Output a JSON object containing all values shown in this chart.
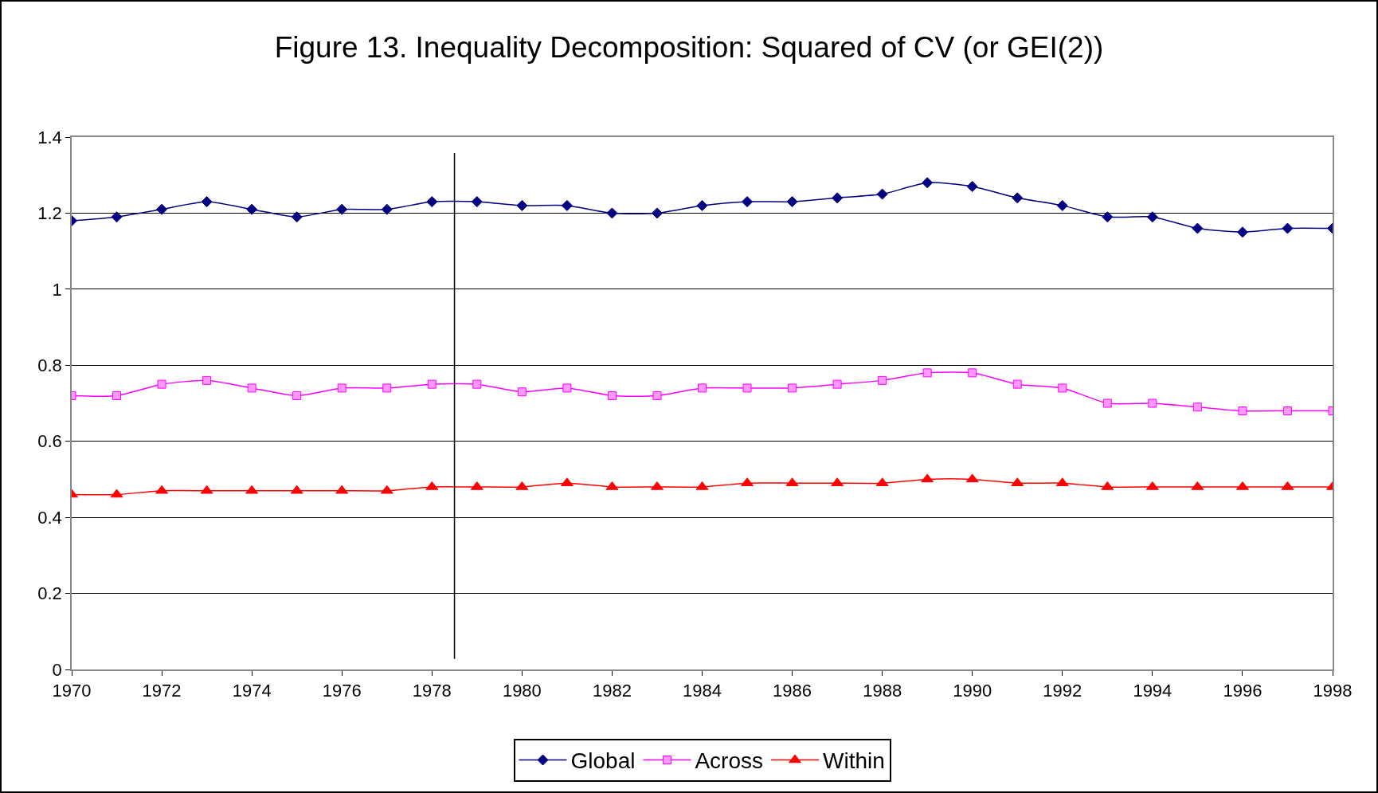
{
  "chart_data": {
    "type": "line",
    "title": "Figure 13. Inequality Decomposition: Squared of CV (or GEI(2))",
    "x": [
      1970,
      1971,
      1972,
      1973,
      1974,
      1975,
      1976,
      1977,
      1978,
      1979,
      1980,
      1981,
      1982,
      1983,
      1984,
      1985,
      1986,
      1987,
      1988,
      1989,
      1990,
      1991,
      1992,
      1993,
      1994,
      1995,
      1996,
      1997,
      1998
    ],
    "series": [
      {
        "name": "Global",
        "color": "#000080",
        "marker": "diamond",
        "values": [
          1.18,
          1.19,
          1.21,
          1.23,
          1.21,
          1.19,
          1.21,
          1.21,
          1.23,
          1.23,
          1.22,
          1.22,
          1.2,
          1.2,
          1.22,
          1.23,
          1.23,
          1.24,
          1.25,
          1.28,
          1.27,
          1.24,
          1.22,
          1.19,
          1.19,
          1.16,
          1.15,
          1.16,
          1.16
        ]
      },
      {
        "name": "Across",
        "color": "#ff00ff",
        "marker": "square",
        "values": [
          0.72,
          0.72,
          0.75,
          0.76,
          0.74,
          0.72,
          0.74,
          0.74,
          0.75,
          0.75,
          0.73,
          0.74,
          0.72,
          0.72,
          0.74,
          0.74,
          0.74,
          0.75,
          0.76,
          0.78,
          0.78,
          0.75,
          0.74,
          0.7,
          0.7,
          0.69,
          0.68,
          0.68,
          0.68
        ]
      },
      {
        "name": "Within",
        "color": "#ff0000",
        "marker": "triangle",
        "values": [
          0.46,
          0.46,
          0.47,
          0.47,
          0.47,
          0.47,
          0.47,
          0.47,
          0.48,
          0.48,
          0.48,
          0.49,
          0.48,
          0.48,
          0.48,
          0.49,
          0.49,
          0.49,
          0.49,
          0.5,
          0.5,
          0.49,
          0.49,
          0.48,
          0.48,
          0.48,
          0.48,
          0.48,
          0.48
        ]
      }
    ],
    "xlim": [
      1970,
      1998
    ],
    "xticks": [
      1970,
      1972,
      1974,
      1976,
      1978,
      1980,
      1982,
      1984,
      1986,
      1988,
      1990,
      1992,
      1994,
      1996,
      1998
    ],
    "ylim": [
      0,
      1.4
    ],
    "yticks": [
      0,
      0.2,
      0.4,
      0.6,
      0.8,
      1,
      1.2,
      1.4
    ],
    "ref_lines": [
      {
        "axis": "x",
        "value": 1978.5,
        "color": "#000000"
      }
    ],
    "grid": "y",
    "legend": "bottom"
  }
}
